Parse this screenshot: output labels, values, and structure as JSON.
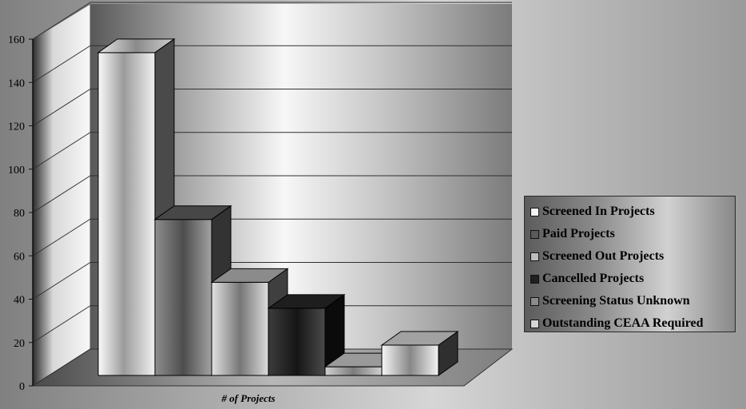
{
  "chart_data": {
    "type": "bar",
    "categories": [
      "# of Projects"
    ],
    "series": [
      {
        "name": "Screened In Projects",
        "values": [
          149
        ]
      },
      {
        "name": "Paid Projects",
        "values": [
          72
        ]
      },
      {
        "name": "Screened Out Projects",
        "values": [
          43
        ]
      },
      {
        "name": "Cancelled Projects",
        "values": [
          31
        ]
      },
      {
        "name": "Screening Status Unknown",
        "values": [
          4
        ]
      },
      {
        "name": "Outstanding CEAA Required",
        "values": [
          14
        ]
      }
    ],
    "title": "",
    "xlabel": "# of Projects",
    "ylabel": "",
    "ylim": [
      0,
      160
    ],
    "yticks": [
      0,
      20,
      40,
      60,
      80,
      100,
      120,
      140,
      160
    ],
    "grid": true,
    "legend_position": "right",
    "series_colors": [
      "#f3f3f3",
      "#5b5b5b",
      "#bdbdbd",
      "#202020",
      "#8b8b8b",
      "#d6d6d6"
    ]
  },
  "legend": {
    "items": [
      "Screened In Projects",
      "Paid Projects",
      "Screened Out Projects",
      "Cancelled Projects",
      "Screening Status Unknown",
      "Outstanding CEAA Required"
    ]
  }
}
